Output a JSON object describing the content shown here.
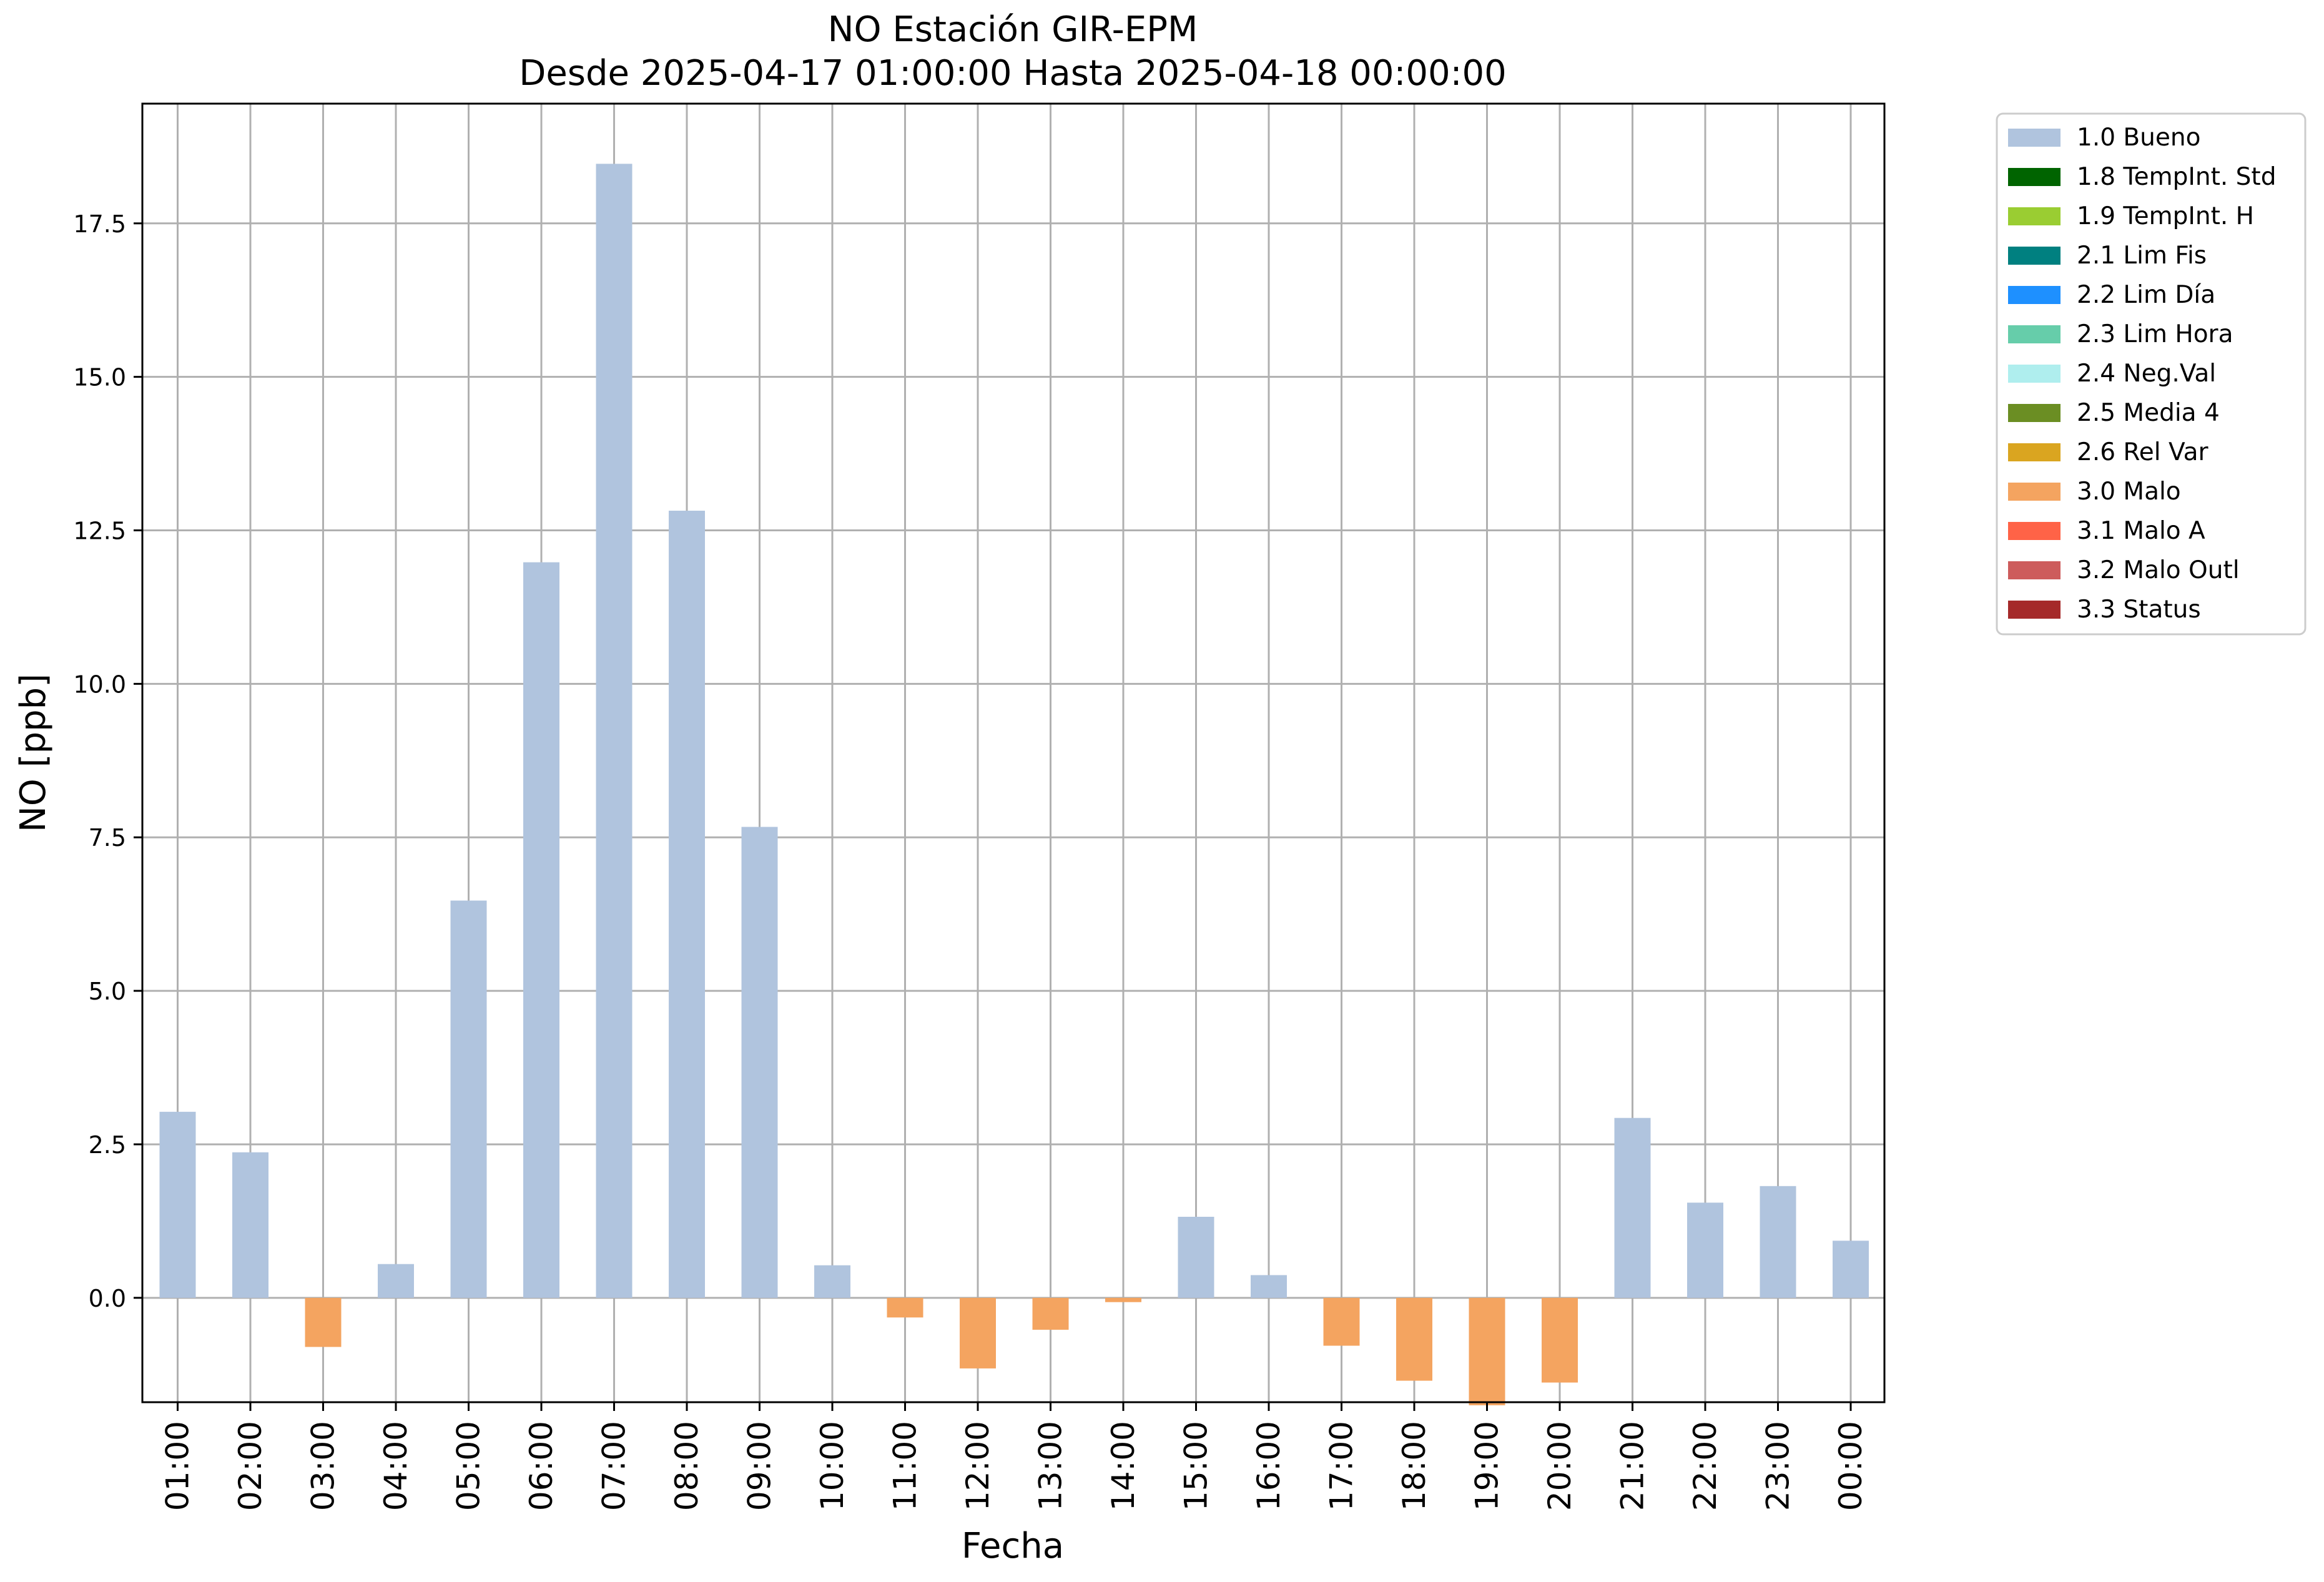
{
  "chart_data": {
    "type": "bar",
    "title": "NO Estación GIR-EPM",
    "subtitle": "Desde 2025-04-17 01:00:00 Hasta 2025-04-18 00:00:00",
    "xlabel": "Fecha",
    "ylabel": "NO [ppb]",
    "ylim": [
      -1.7,
      19.45
    ],
    "yticks": [
      0.0,
      2.5,
      5.0,
      7.5,
      10.0,
      12.5,
      15.0,
      17.5
    ],
    "ytick_labels": [
      "0.0",
      "2.5",
      "5.0",
      "7.5",
      "10.0",
      "12.5",
      "15.0",
      "17.5"
    ],
    "grid": true,
    "legend_position": "outside-top-right",
    "categories": [
      "01:00",
      "02:00",
      "03:00",
      "04:00",
      "05:00",
      "06:00",
      "07:00",
      "08:00",
      "09:00",
      "10:00",
      "11:00",
      "12:00",
      "13:00",
      "14:00",
      "15:00",
      "16:00",
      "17:00",
      "18:00",
      "19:00",
      "20:00",
      "21:00",
      "22:00",
      "23:00",
      "00:00"
    ],
    "values": [
      3.03,
      2.37,
      -0.8,
      0.55,
      6.47,
      11.98,
      18.47,
      12.82,
      7.67,
      0.53,
      -0.32,
      -1.15,
      -0.52,
      -0.07,
      1.32,
      0.37,
      -0.78,
      -1.35,
      -1.75,
      -1.38,
      2.93,
      1.55,
      1.82,
      0.93
    ],
    "flags": [
      "1.0 Bueno",
      "1.0 Bueno",
      "3.0 Malo",
      "1.0 Bueno",
      "1.0 Bueno",
      "1.0 Bueno",
      "1.0 Bueno",
      "1.0 Bueno",
      "1.0 Bueno",
      "1.0 Bueno",
      "3.0 Malo",
      "3.0 Malo",
      "3.0 Malo",
      "3.0 Malo",
      "1.0 Bueno",
      "1.0 Bueno",
      "3.0 Malo",
      "3.0 Malo",
      "3.0 Malo",
      "3.0 Malo",
      "1.0 Bueno",
      "1.0 Bueno",
      "1.0 Bueno",
      "1.0 Bueno"
    ],
    "legend": [
      {
        "label": "1.0 Bueno",
        "color": "#b0c4de"
      },
      {
        "label": "1.8 TempInt. Std",
        "color": "#006400"
      },
      {
        "label": "1.9 TempInt. H",
        "color": "#9acd32"
      },
      {
        "label": "2.1 Lim Fis",
        "color": "#008080"
      },
      {
        "label": "2.2 Lim Día",
        "color": "#1e90ff"
      },
      {
        "label": "2.3 Lim Hora",
        "color": "#66cdaa"
      },
      {
        "label": "2.4 Neg.Val",
        "color": "#afeeee"
      },
      {
        "label": "2.5 Media 4",
        "color": "#6b8e23"
      },
      {
        "label": "2.6 Rel Var",
        "color": "#daa520"
      },
      {
        "label": "3.0 Malo",
        "color": "#f4a460"
      },
      {
        "label": "3.1 Malo A",
        "color": "#ff6347"
      },
      {
        "label": "3.2 Malo Outl",
        "color": "#cd5c5c"
      },
      {
        "label": "3.3 Status",
        "color": "#a52a2a"
      }
    ]
  }
}
